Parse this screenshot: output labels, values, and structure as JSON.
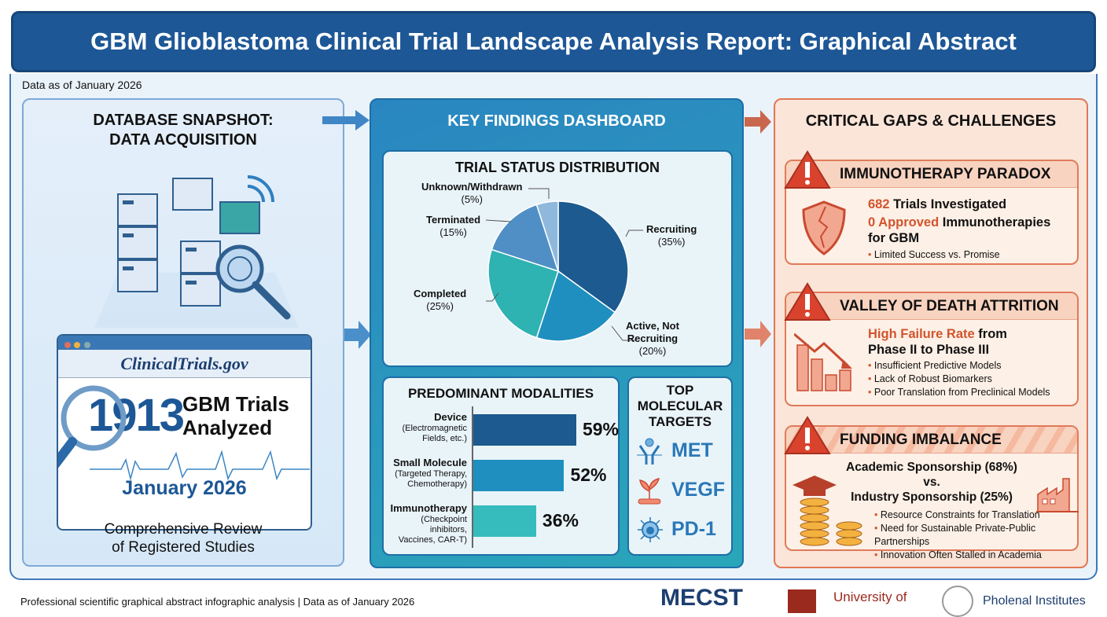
{
  "title": "GBM Glioblastoma Clinical Trial Landscape Analysis Report: Graphical Abstract",
  "data_as_of": "Data as of January 2026",
  "left_panel": {
    "heading_line1": "DATABASE SNAPSHOT:",
    "heading_line2": "DATA ACQUISITION",
    "source": "ClinicalTrials.gov",
    "trial_count": "1913",
    "trial_label_line1": "GBM Trials",
    "trial_label_line2": "Analyzed",
    "date": "January 2026",
    "caption_line1": "Comprehensive Review",
    "caption_line2": "of Registered Studies"
  },
  "middle_panel": {
    "heading": "KEY FINDINGS DASHBOARD",
    "modalities_title": "PREDOMINANT MODALITIES",
    "targets_title_line1": "TOP",
    "targets_title_line2": "MOLECULAR",
    "targets_title_line3": "TARGETS",
    "targets": [
      {
        "name": "MET",
        "icon": "receptor-icon"
      },
      {
        "name": "VEGF",
        "icon": "vessel-sprout-icon"
      },
      {
        "name": "PD-1",
        "icon": "immune-cell-icon"
      }
    ]
  },
  "chart_data": [
    {
      "type": "pie",
      "title": "TRIAL STATUS DISTRIBUTION",
      "slices": [
        {
          "label": "Recruiting",
          "value": 35,
          "value_label": "(35%)",
          "color": "#1c5a8f"
        },
        {
          "label": "Active, Not Recruiting",
          "label_line1": "Active, Not",
          "label_line2": "Recruiting",
          "value": 20,
          "value_label": "(20%)",
          "color": "#1f8fbf"
        },
        {
          "label": "Completed",
          "value": 25,
          "value_label": "(25%)",
          "color": "#2eb2b2"
        },
        {
          "label": "Terminated",
          "value": 15,
          "value_label": "(15%)",
          "color": "#4f8fc5"
        },
        {
          "label": "Unknown/Withdrawn",
          "value": 5,
          "value_label": "(5%)",
          "color": "#8fb9dc"
        }
      ]
    },
    {
      "type": "bar",
      "orientation": "horizontal",
      "title": "PREDOMINANT MODALITIES",
      "categories": [
        {
          "name": "Device",
          "sub1": "(Electromagnetic",
          "sub2": "Fields, etc.)"
        },
        {
          "name": "Small Molecule",
          "sub1": "(Targeted Therapy,",
          "sub2": "Chemotherapy)"
        },
        {
          "name": "Immunotherapy",
          "sub1": "(Checkpoint inhibitors,",
          "sub2": "Vaccines, CAR-T)"
        }
      ],
      "values": [
        59,
        52,
        36
      ],
      "value_labels": [
        "59%",
        "52%",
        "36%"
      ],
      "colors": [
        "#1c5a8f",
        "#1f8fbf",
        "#36bcbc"
      ]
    }
  ],
  "right_panel": {
    "heading": "CRITICAL GAPS & CHALLENGES",
    "immuno": {
      "title": "IMMUNOTHERAPY PARADOX",
      "count": "682",
      "count_text": " Trials Investigated",
      "approved": "0 Approved",
      "approved_text": " Immunotherapies",
      "approved_text2": "for GBM",
      "bullets": [
        "Limited Success vs. Promise"
      ]
    },
    "valley": {
      "title": "VALLEY OF DEATH ATTRITION",
      "hl": "High Failure Rate",
      "text1": " from",
      "text2": "Phase II to Phase III",
      "bullets": [
        "Insufficient Predictive Models",
        "Lack of Robust Biomarkers",
        "Poor Translation from Preclinical Models"
      ]
    },
    "funding": {
      "title": "FUNDING IMBALANCE",
      "line1": "Academic Sponsorship (68%)",
      "line2": "vs.",
      "line3": "Industry Sponsorship (25%)",
      "bullets": [
        "Resource Constraints for Translation",
        "Need for Sustainable Private-Public Partnerships",
        "Innovation Often Stalled in Academia"
      ]
    }
  },
  "footer": {
    "text": "Professional scientific graphical abstract infographic analysis | Data as of January 2026",
    "logos": [
      "MECST",
      "University of",
      "Pholenal Institutes"
    ]
  },
  "colors": {
    "primary": "#1d5796",
    "accent": "#d2542d",
    "teal": "#2aa6ba"
  }
}
